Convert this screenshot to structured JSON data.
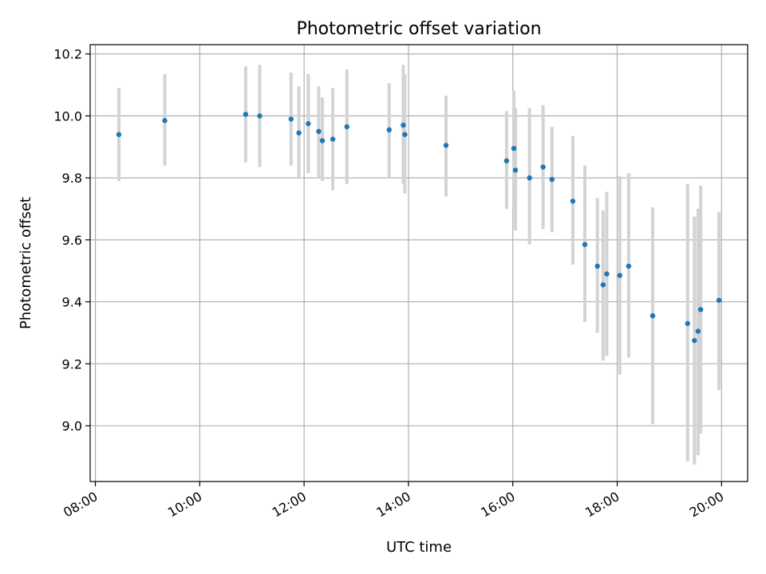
{
  "chart_data": {
    "type": "scatter",
    "title": "Photometric offset variation",
    "xlabel": "UTC time",
    "ylabel": "Photometric offset",
    "x_unit": "hours UTC",
    "xlim": [
      7.9,
      20.5
    ],
    "ylim": [
      8.82,
      10.23
    ],
    "x_ticks": [
      {
        "value": 8,
        "label": "08:00"
      },
      {
        "value": 10,
        "label": "10:00"
      },
      {
        "value": 12,
        "label": "12:00"
      },
      {
        "value": 14,
        "label": "14:00"
      },
      {
        "value": 16,
        "label": "16:00"
      },
      {
        "value": 18,
        "label": "18:00"
      },
      {
        "value": 20,
        "label": "20:00"
      }
    ],
    "y_ticks": [
      {
        "value": 9.0,
        "label": "9.0"
      },
      {
        "value": 9.2,
        "label": "9.2"
      },
      {
        "value": 9.4,
        "label": "9.4"
      },
      {
        "value": 9.6,
        "label": "9.6"
      },
      {
        "value": 9.8,
        "label": "9.8"
      },
      {
        "value": 10.0,
        "label": "10.0"
      },
      {
        "value": 10.2,
        "label": "10.2"
      }
    ],
    "grid": true,
    "point_color": "#1f77b4",
    "errorbar_color": "#d3d3d3",
    "points": [
      {
        "x": 8.45,
        "y": 9.94,
        "lo": 9.79,
        "hi": 10.09
      },
      {
        "x": 9.33,
        "y": 9.985,
        "lo": 9.84,
        "hi": 10.135
      },
      {
        "x": 10.88,
        "y": 10.005,
        "lo": 9.85,
        "hi": 10.16
      },
      {
        "x": 11.15,
        "y": 10.0,
        "lo": 9.835,
        "hi": 10.165
      },
      {
        "x": 11.75,
        "y": 9.99,
        "lo": 9.84,
        "hi": 10.14
      },
      {
        "x": 11.9,
        "y": 9.945,
        "lo": 9.8,
        "hi": 10.095
      },
      {
        "x": 12.08,
        "y": 9.975,
        "lo": 9.815,
        "hi": 10.135
      },
      {
        "x": 12.28,
        "y": 9.95,
        "lo": 9.8,
        "hi": 10.095
      },
      {
        "x": 12.35,
        "y": 9.92,
        "lo": 9.79,
        "hi": 10.06
      },
      {
        "x": 12.55,
        "y": 9.925,
        "lo": 9.76,
        "hi": 10.09
      },
      {
        "x": 12.82,
        "y": 9.965,
        "lo": 9.78,
        "hi": 10.15
      },
      {
        "x": 13.63,
        "y": 9.955,
        "lo": 9.8,
        "hi": 10.105
      },
      {
        "x": 13.9,
        "y": 9.97,
        "lo": 9.78,
        "hi": 10.165
      },
      {
        "x": 13.93,
        "y": 9.94,
        "lo": 9.75,
        "hi": 10.135
      },
      {
        "x": 14.72,
        "y": 9.905,
        "lo": 9.74,
        "hi": 10.065
      },
      {
        "x": 15.88,
        "y": 9.855,
        "lo": 9.7,
        "hi": 10.015
      },
      {
        "x": 16.02,
        "y": 9.895,
        "lo": 9.71,
        "hi": 10.08
      },
      {
        "x": 16.05,
        "y": 9.825,
        "lo": 9.63,
        "hi": 10.025
      },
      {
        "x": 16.32,
        "y": 9.8,
        "lo": 9.585,
        "hi": 10.025
      },
      {
        "x": 16.58,
        "y": 9.835,
        "lo": 9.635,
        "hi": 10.035
      },
      {
        "x": 16.75,
        "y": 9.795,
        "lo": 9.625,
        "hi": 9.965
      },
      {
        "x": 17.15,
        "y": 9.725,
        "lo": 9.52,
        "hi": 9.935
      },
      {
        "x": 17.38,
        "y": 9.585,
        "lo": 9.335,
        "hi": 9.84
      },
      {
        "x": 17.62,
        "y": 9.515,
        "lo": 9.3,
        "hi": 9.735
      },
      {
        "x": 17.73,
        "y": 9.455,
        "lo": 9.21,
        "hi": 9.695
      },
      {
        "x": 17.8,
        "y": 9.49,
        "lo": 9.225,
        "hi": 9.755
      },
      {
        "x": 18.05,
        "y": 9.485,
        "lo": 9.165,
        "hi": 9.805
      },
      {
        "x": 18.22,
        "y": 9.515,
        "lo": 9.22,
        "hi": 9.815
      },
      {
        "x": 18.68,
        "y": 9.355,
        "lo": 9.005,
        "hi": 9.705
      },
      {
        "x": 19.35,
        "y": 9.33,
        "lo": 8.885,
        "hi": 9.78
      },
      {
        "x": 19.48,
        "y": 9.275,
        "lo": 8.875,
        "hi": 9.675
      },
      {
        "x": 19.55,
        "y": 9.305,
        "lo": 8.905,
        "hi": 9.7
      },
      {
        "x": 19.6,
        "y": 9.375,
        "lo": 8.975,
        "hi": 9.775
      },
      {
        "x": 19.95,
        "y": 9.405,
        "lo": 9.115,
        "hi": 9.69
      }
    ]
  }
}
